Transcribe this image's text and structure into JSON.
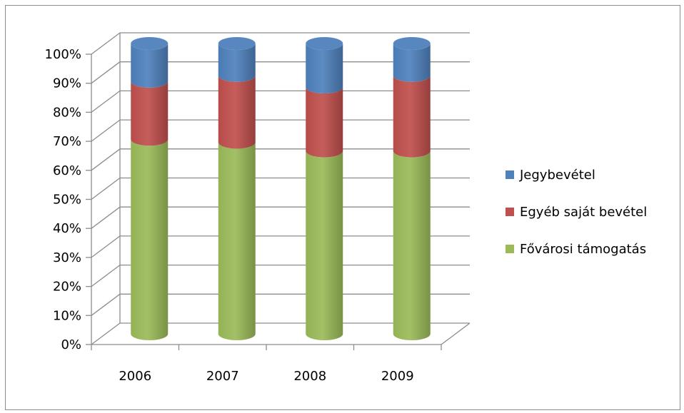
{
  "chart_data": {
    "type": "bar",
    "stacked": true,
    "percent_stacked": true,
    "three_d": true,
    "bar_shape": "cylinder",
    "categories": [
      "2006",
      "2007",
      "2008",
      "2009"
    ],
    "series": [
      {
        "name": "Fővárosi támogatás",
        "color": "#9BBB59",
        "values": [
          67,
          66,
          63,
          63
        ]
      },
      {
        "name": "Egyéb saját bevétel",
        "color": "#C0504D",
        "values": [
          20,
          23,
          22,
          26
        ]
      },
      {
        "name": "Jegybevétel",
        "color": "#4F81BD",
        "values": [
          13,
          11,
          15,
          11
        ]
      }
    ],
    "y_ticks": [
      "0%",
      "10%",
      "20%",
      "30%",
      "40%",
      "50%",
      "60%",
      "70%",
      "80%",
      "90%",
      "100%"
    ],
    "ylim": [
      0,
      100
    ],
    "grid": true,
    "legend_position": "right",
    "legend_order": [
      "Jegybevétel",
      "Egyéb saját bevétel",
      "Fővárosi támogatás"
    ]
  }
}
